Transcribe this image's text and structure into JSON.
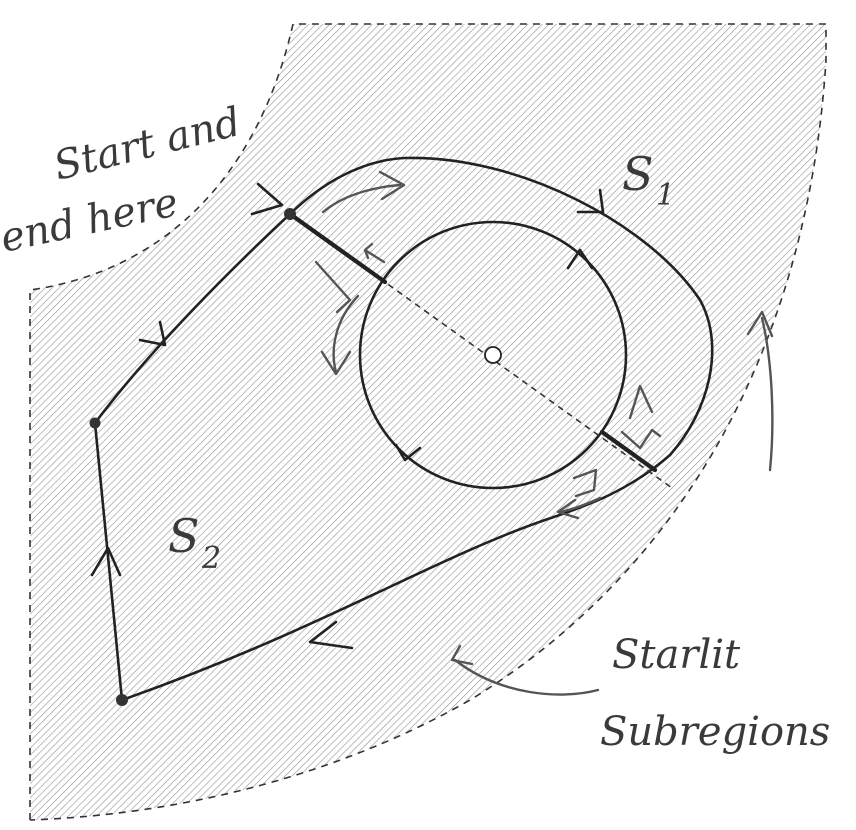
{
  "labels": {
    "start_line1": "Start and",
    "start_line2": "end here",
    "s1_letter": "S",
    "s1_sub": "1",
    "s2_letter": "S",
    "s2_sub": "2",
    "starlit_line1": "Starlit",
    "starlit_line2": "Subregions"
  },
  "colors": {
    "ink": "#222222",
    "hatch": "#9a9a9a",
    "pencil": "#555555"
  }
}
